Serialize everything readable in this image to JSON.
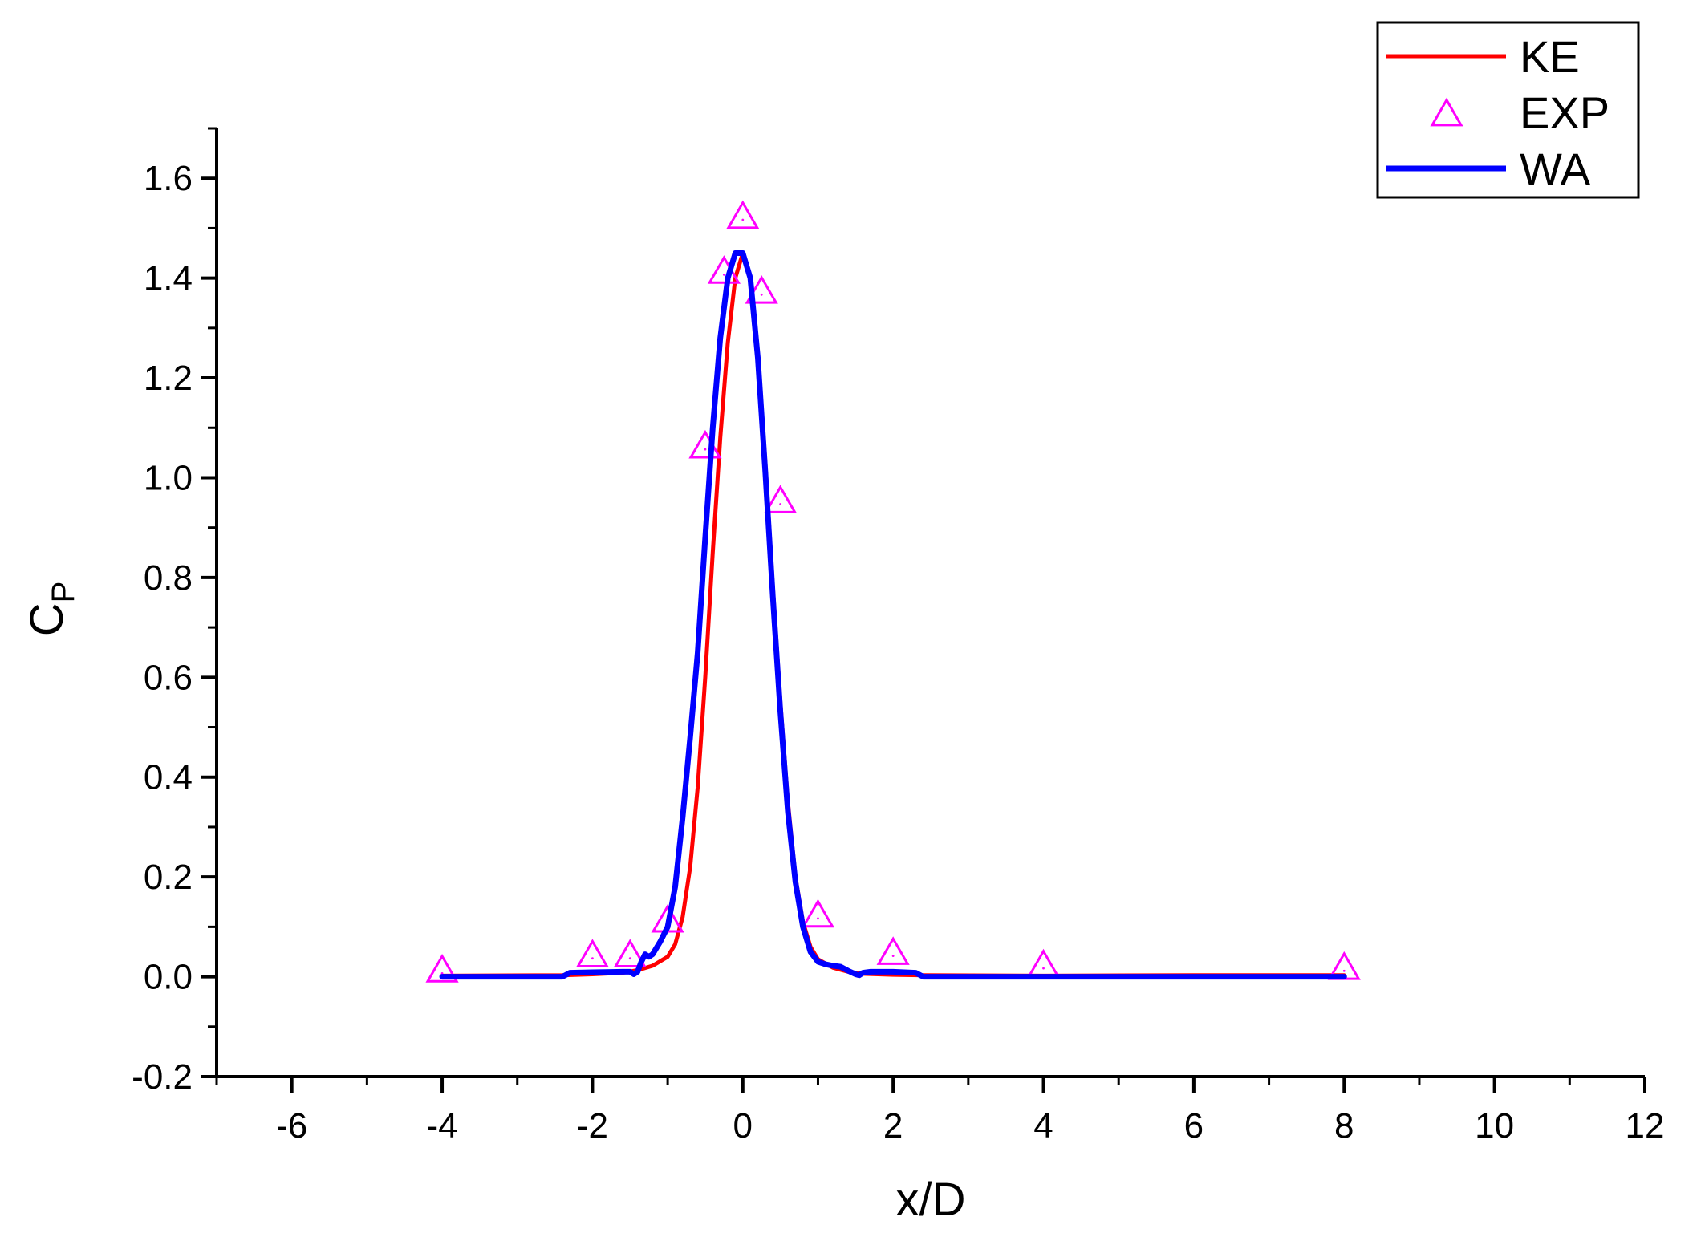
{
  "chart_data": {
    "type": "line",
    "xlabel": "x/D",
    "ylabel_main": "C",
    "ylabel_sub": "P",
    "xlim": [
      -7,
      12
    ],
    "ylim": [
      -0.2,
      1.7
    ],
    "x_ticks": [
      -6,
      -4,
      -2,
      0,
      2,
      4,
      6,
      8,
      10,
      12
    ],
    "x_tick_labels": [
      "-6",
      "-4",
      "-2",
      "0",
      "2",
      "4",
      "6",
      "8",
      "10",
      "12"
    ],
    "y_ticks": [
      -0.2,
      0.0,
      0.2,
      0.4,
      0.6,
      0.8,
      1.0,
      1.2,
      1.4,
      1.6
    ],
    "y_tick_labels": [
      "-0.2",
      "0.0",
      "0.2",
      "0.4",
      "0.6",
      "0.8",
      "1.0",
      "1.2",
      "1.4",
      "1.6"
    ],
    "grid": false,
    "legend_position": "top-right",
    "series": [
      {
        "name": "KE",
        "style": "line",
        "color": "#ff0000",
        "x": [
          -4,
          -2.4,
          -2.0,
          -1.6,
          -1.4,
          -1.2,
          -1.0,
          -0.9,
          -0.8,
          -0.7,
          -0.6,
          -0.5,
          -0.4,
          -0.3,
          -0.2,
          -0.1,
          0,
          0.1,
          0.2,
          0.3,
          0.4,
          0.5,
          0.6,
          0.7,
          0.8,
          0.9,
          1.0,
          1.2,
          1.4,
          1.6,
          2.0,
          2.4,
          4.0,
          6.0,
          8.0
        ],
        "y": [
          0.002,
          0.003,
          0.005,
          0.008,
          0.013,
          0.022,
          0.04,
          0.065,
          0.12,
          0.22,
          0.38,
          0.6,
          0.85,
          1.08,
          1.27,
          1.4,
          1.45,
          1.4,
          1.25,
          1.03,
          0.78,
          0.55,
          0.35,
          0.2,
          0.11,
          0.06,
          0.035,
          0.018,
          0.01,
          0.006,
          0.004,
          0.003,
          0.002,
          0.003,
          0.003
        ]
      },
      {
        "name": "EXP",
        "style": "marker",
        "color": "#ff00ff",
        "x": [
          -4,
          -2,
          -1.5,
          -1,
          -0.5,
          -0.25,
          0,
          0.25,
          0.5,
          1,
          2,
          4,
          8
        ],
        "y": [
          0.01,
          0.04,
          0.04,
          0.11,
          1.06,
          1.41,
          1.52,
          1.37,
          0.95,
          0.12,
          0.045,
          0.02,
          0.015
        ]
      },
      {
        "name": "WA",
        "style": "line",
        "color": "#0000ff",
        "x": [
          -4,
          -2.4,
          -2.3,
          -2.0,
          -1.6,
          -1.5,
          -1.45,
          -1.4,
          -1.35,
          -1.3,
          -1.25,
          -1.2,
          -1.1,
          -1.0,
          -0.9,
          -0.8,
          -0.7,
          -0.6,
          -0.5,
          -0.4,
          -0.3,
          -0.2,
          -0.1,
          0,
          0.1,
          0.2,
          0.3,
          0.4,
          0.5,
          0.6,
          0.7,
          0.8,
          0.9,
          1.0,
          1.1,
          1.2,
          1.3,
          1.4,
          1.5,
          1.55,
          1.6,
          1.7,
          2.0,
          2.3,
          2.4,
          4.0,
          6.0,
          8.0
        ],
        "y": [
          0.0,
          0.0,
          0.008,
          0.009,
          0.01,
          0.01,
          0.005,
          0.01,
          0.03,
          0.045,
          0.04,
          0.045,
          0.07,
          0.1,
          0.18,
          0.32,
          0.48,
          0.65,
          0.88,
          1.1,
          1.28,
          1.4,
          1.45,
          1.45,
          1.4,
          1.24,
          1.01,
          0.76,
          0.53,
          0.33,
          0.19,
          0.1,
          0.05,
          0.03,
          0.025,
          0.022,
          0.02,
          0.012,
          0.005,
          0.003,
          0.008,
          0.01,
          0.01,
          0.008,
          0.0,
          0.0,
          0.0,
          0.0
        ]
      }
    ]
  }
}
